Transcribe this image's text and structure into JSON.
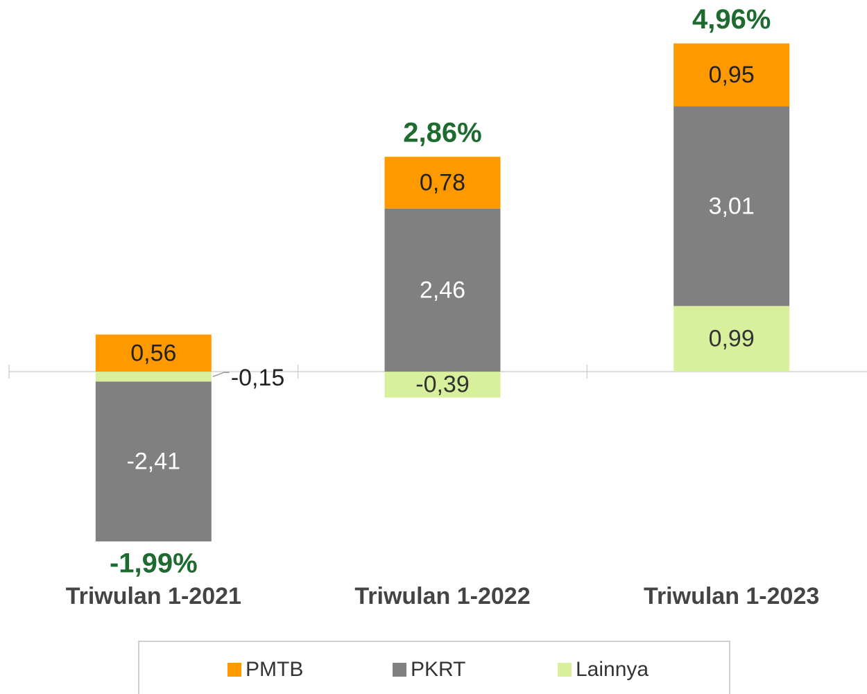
{
  "chart_data": {
    "type": "stacked_bar",
    "categories": [
      "Triwulan 1-2021",
      "Triwulan 1-2022",
      "Triwulan 1-2023"
    ],
    "series": [
      {
        "name": "PMTB",
        "color": "#ff9900",
        "values": [
          0.56,
          0.78,
          0.95
        ],
        "value_labels": [
          "0,56",
          "0,78",
          "0,95"
        ]
      },
      {
        "name": "PKRT",
        "color": "#808080",
        "values": [
          -2.41,
          2.46,
          3.01
        ],
        "value_labels": [
          "-2,41",
          "2,46",
          "3,01"
        ]
      },
      {
        "name": "Lainnya",
        "color": "#d8ef9c",
        "values": [
          -0.15,
          -0.39,
          0.99
        ],
        "value_labels": [
          "-0,15",
          "-0,39",
          "0,99"
        ]
      }
    ],
    "totals": [
      -1.99,
      2.86,
      4.96
    ],
    "total_labels": [
      "-1,99%",
      "2,86%",
      "4,96%"
    ],
    "ylim": [
      -3,
      5.5
    ],
    "legend": "bottom"
  }
}
